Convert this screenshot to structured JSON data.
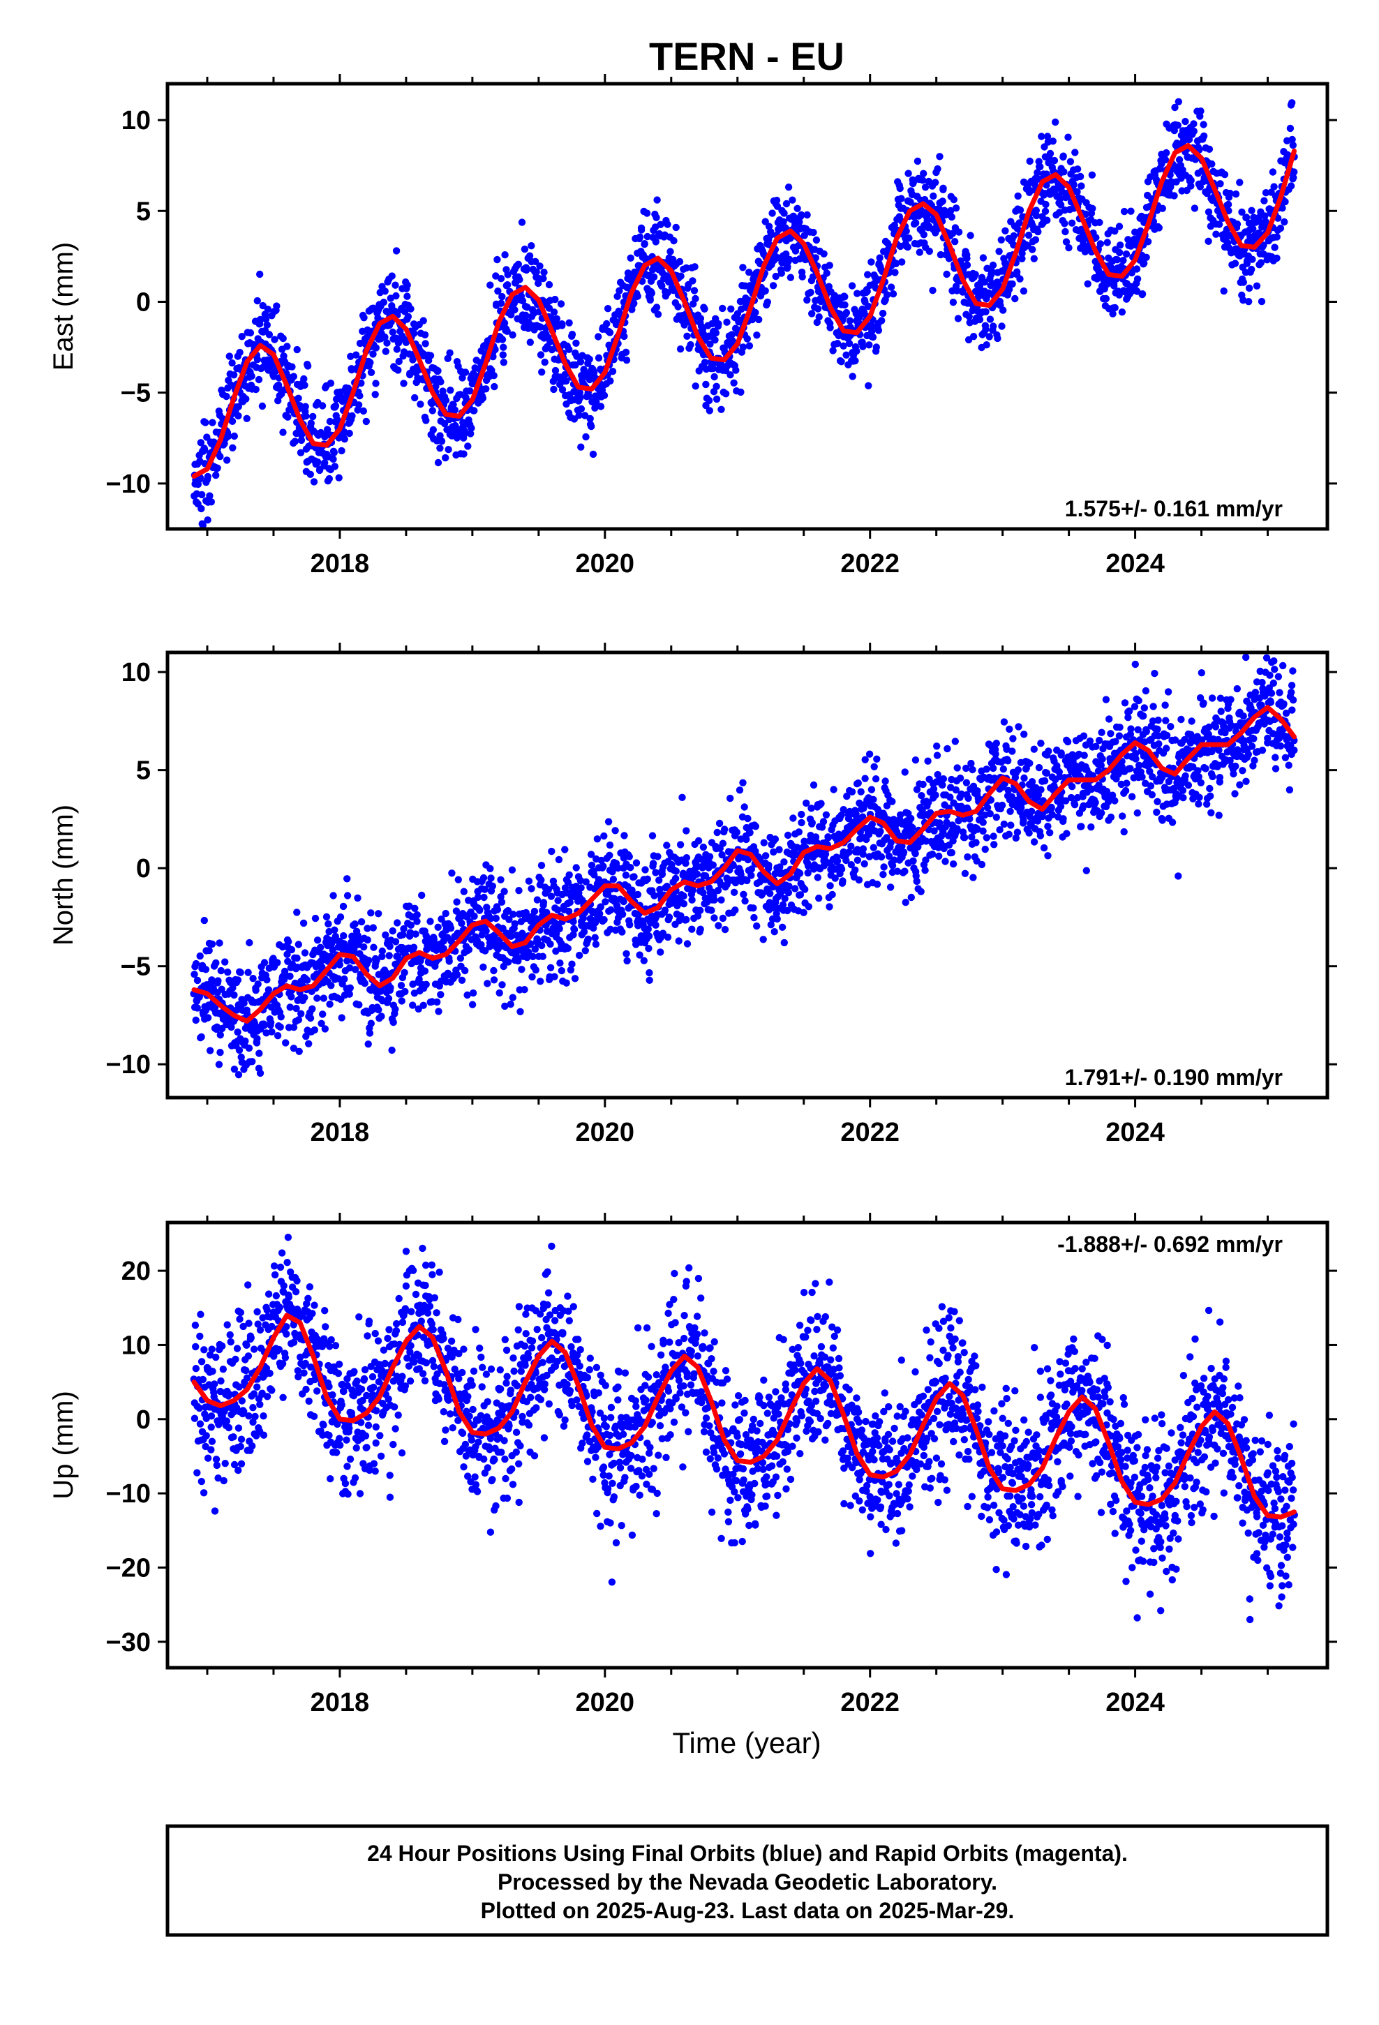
{
  "figure": {
    "title": "TERN - EU",
    "xlabel": "Time (year)"
  },
  "chart_data": [
    {
      "type": "scatter",
      "ylabel": "East (mm)",
      "xlim": [
        2016.7,
        2025.45
      ],
      "ylim": [
        -12.5,
        12
      ],
      "xticks": [
        2018,
        2020,
        2022,
        2024
      ],
      "yticks": [
        -10,
        -5,
        0,
        5,
        10
      ],
      "grid": false,
      "rate_label": "1.575+/- 0.161 mm/yr",
      "rate_position": "bottom-right",
      "series": [
        {
          "name": "Final Orbits (blue)",
          "kind": "points",
          "color": "#0000ff"
        },
        {
          "name": "Model fit",
          "kind": "line",
          "color": "#ff0000",
          "x": [
            2016.9,
            2017.0,
            2017.1,
            2017.2,
            2017.3,
            2017.4,
            2017.5,
            2017.6,
            2017.7,
            2017.8,
            2017.9,
            2018.0,
            2018.1,
            2018.2,
            2018.3,
            2018.4,
            2018.5,
            2018.6,
            2018.7,
            2018.8,
            2018.9,
            2019.0,
            2019.1,
            2019.2,
            2019.3,
            2019.4,
            2019.5,
            2019.6,
            2019.7,
            2019.8,
            2019.9,
            2020.0,
            2020.1,
            2020.2,
            2020.3,
            2020.4,
            2020.5,
            2020.6,
            2020.7,
            2020.8,
            2020.9,
            2021.0,
            2021.1,
            2021.2,
            2021.3,
            2021.4,
            2021.5,
            2021.6,
            2021.7,
            2021.8,
            2021.9,
            2022.0,
            2022.1,
            2022.2,
            2022.3,
            2022.4,
            2022.5,
            2022.6,
            2022.7,
            2022.8,
            2022.9,
            2023.0,
            2023.1,
            2023.2,
            2023.3,
            2023.4,
            2023.5,
            2023.6,
            2023.7,
            2023.8,
            2023.9,
            2024.0,
            2024.1,
            2024.2,
            2024.3,
            2024.4,
            2024.5,
            2024.6,
            2024.7,
            2024.8,
            2024.9,
            2025.0,
            2025.1,
            2025.2
          ],
          "y": [
            -9.6,
            -9.2,
            -7.6,
            -5.3,
            -3.3,
            -2.4,
            -2.9,
            -4.6,
            -6.5,
            -7.8,
            -7.9,
            -7.0,
            -5.0,
            -2.7,
            -1.2,
            -0.8,
            -1.5,
            -3.2,
            -5.0,
            -6.2,
            -6.3,
            -5.4,
            -3.4,
            -1.1,
            0.4,
            0.8,
            0.1,
            -1.6,
            -3.4,
            -4.7,
            -4.8,
            -3.9,
            -1.8,
            0.5,
            2.0,
            2.4,
            1.7,
            0.0,
            -1.9,
            -3.1,
            -3.2,
            -2.3,
            -0.3,
            2.0,
            3.5,
            3.9,
            3.2,
            1.6,
            -0.3,
            -1.6,
            -1.7,
            -0.8,
            1.2,
            3.5,
            5.0,
            5.4,
            4.8,
            3.1,
            1.2,
            -0.1,
            -0.2,
            0.7,
            2.7,
            5.0,
            6.6,
            7.0,
            6.3,
            4.6,
            2.8,
            1.5,
            1.4,
            2.3,
            4.3,
            6.6,
            8.2,
            8.6,
            7.9,
            6.2,
            4.4,
            3.1,
            3.0,
            3.8,
            5.8,
            8.3
          ]
        }
      ]
    },
    {
      "type": "scatter",
      "ylabel": "North (mm)",
      "xlim": [
        2016.7,
        2025.45
      ],
      "ylim": [
        -11.7,
        11
      ],
      "xticks": [
        2018,
        2020,
        2022,
        2024
      ],
      "yticks": [
        -10,
        -5,
        0,
        5,
        10
      ],
      "grid": false,
      "rate_label": "1.791+/- 0.190 mm/yr",
      "rate_position": "bottom-right",
      "series": [
        {
          "name": "Final Orbits (blue)",
          "kind": "points",
          "color": "#0000ff"
        },
        {
          "name": "Model fit",
          "kind": "line",
          "color": "#ff0000",
          "x": [
            2016.9,
            2017.0,
            2017.1,
            2017.2,
            2017.3,
            2017.4,
            2017.5,
            2017.6,
            2017.7,
            2017.8,
            2017.9,
            2018.0,
            2018.1,
            2018.2,
            2018.3,
            2018.4,
            2018.5,
            2018.6,
            2018.7,
            2018.8,
            2018.9,
            2019.0,
            2019.1,
            2019.2,
            2019.3,
            2019.4,
            2019.5,
            2019.6,
            2019.7,
            2019.8,
            2019.9,
            2020.0,
            2020.1,
            2020.2,
            2020.3,
            2020.4,
            2020.5,
            2020.6,
            2020.7,
            2020.8,
            2020.9,
            2021.0,
            2021.1,
            2021.2,
            2021.3,
            2021.4,
            2021.5,
            2021.6,
            2021.7,
            2021.8,
            2021.9,
            2022.0,
            2022.1,
            2022.2,
            2022.3,
            2022.4,
            2022.5,
            2022.6,
            2022.7,
            2022.8,
            2022.9,
            2023.0,
            2023.1,
            2023.2,
            2023.3,
            2023.4,
            2023.5,
            2023.6,
            2023.7,
            2023.8,
            2023.9,
            2024.0,
            2024.1,
            2024.2,
            2024.3,
            2024.4,
            2024.5,
            2024.6,
            2024.7,
            2024.8,
            2024.9,
            2025.0,
            2025.1,
            2025.2
          ],
          "y": [
            -6.2,
            -6.4,
            -7.0,
            -7.5,
            -7.8,
            -7.2,
            -6.4,
            -6.0,
            -6.2,
            -6.0,
            -5.2,
            -4.4,
            -4.5,
            -5.4,
            -6.0,
            -5.6,
            -4.6,
            -4.3,
            -4.6,
            -4.4,
            -3.7,
            -2.9,
            -2.7,
            -3.3,
            -4.0,
            -3.8,
            -2.9,
            -2.4,
            -2.6,
            -2.3,
            -1.6,
            -0.9,
            -0.9,
            -1.7,
            -2.3,
            -2.0,
            -1.1,
            -0.7,
            -0.9,
            -0.7,
            0.0,
            0.9,
            0.7,
            -0.2,
            -0.8,
            -0.3,
            0.8,
            1.1,
            1.0,
            1.3,
            2.0,
            2.6,
            2.3,
            1.4,
            1.3,
            2.0,
            2.8,
            2.9,
            2.7,
            2.9,
            3.8,
            4.6,
            4.3,
            3.4,
            3.0,
            3.8,
            4.5,
            4.5,
            4.5,
            5.0,
            5.8,
            6.4,
            6.0,
            5.1,
            4.8,
            5.6,
            6.3,
            6.3,
            6.3,
            6.9,
            7.7,
            8.2,
            7.6,
            6.7
          ]
        }
      ]
    },
    {
      "type": "scatter",
      "ylabel": "Up (mm)",
      "xlim": [
        2016.7,
        2025.45
      ],
      "ylim": [
        -33.5,
        26.5
      ],
      "xticks": [
        2018,
        2020,
        2022,
        2024
      ],
      "yticks": [
        -30,
        -20,
        -10,
        0,
        10,
        20
      ],
      "grid": false,
      "rate_label": "-1.888+/- 0.692 mm/yr",
      "rate_position": "top-right",
      "series": [
        {
          "name": "Final Orbits (blue)",
          "kind": "points",
          "color": "#0000ff"
        },
        {
          "name": "Model fit",
          "kind": "line",
          "color": "#ff0000",
          "x": [
            2016.9,
            2017.0,
            2017.1,
            2017.2,
            2017.3,
            2017.4,
            2017.5,
            2017.6,
            2017.7,
            2017.8,
            2017.9,
            2018.0,
            2018.1,
            2018.2,
            2018.3,
            2018.4,
            2018.5,
            2018.6,
            2018.7,
            2018.8,
            2018.9,
            2019.0,
            2019.1,
            2019.2,
            2019.3,
            2019.4,
            2019.5,
            2019.6,
            2019.7,
            2019.8,
            2019.9,
            2020.0,
            2020.1,
            2020.2,
            2020.3,
            2020.4,
            2020.5,
            2020.6,
            2020.7,
            2020.8,
            2020.9,
            2021.0,
            2021.1,
            2021.2,
            2021.3,
            2021.4,
            2021.5,
            2021.6,
            2021.7,
            2021.8,
            2021.9,
            2022.0,
            2022.1,
            2022.2,
            2022.3,
            2022.4,
            2022.5,
            2022.6,
            2022.7,
            2022.8,
            2022.9,
            2023.0,
            2023.1,
            2023.2,
            2023.3,
            2023.4,
            2023.5,
            2023.6,
            2023.7,
            2023.8,
            2023.9,
            2024.0,
            2024.1,
            2024.2,
            2024.3,
            2024.4,
            2024.5,
            2024.6,
            2024.7,
            2024.8,
            2024.9,
            2025.0,
            2025.1,
            2025.2
          ],
          "y": [
            5.0,
            2.5,
            1.8,
            2.5,
            4.0,
            7.0,
            11.0,
            14.0,
            13.0,
            8.5,
            3.0,
            0.0,
            -0.2,
            0.8,
            3.0,
            7.0,
            10.5,
            12.5,
            11.0,
            6.5,
            1.0,
            -1.8,
            -2.0,
            -1.2,
            1.0,
            5.0,
            8.5,
            10.5,
            9.0,
            4.5,
            -0.8,
            -3.8,
            -4.0,
            -3.2,
            -1.0,
            3.0,
            6.5,
            8.5,
            7.0,
            2.5,
            -2.8,
            -5.6,
            -5.8,
            -5.0,
            -2.8,
            1.2,
            4.8,
            6.8,
            5.2,
            0.6,
            -4.6,
            -7.5,
            -7.8,
            -7.0,
            -4.8,
            -0.8,
            2.8,
            4.8,
            3.2,
            -1.4,
            -6.6,
            -9.4,
            -9.6,
            -8.8,
            -6.6,
            -2.6,
            1.0,
            3.0,
            1.4,
            -3.2,
            -8.4,
            -11.2,
            -11.5,
            -10.8,
            -8.6,
            -4.6,
            -1.0,
            1.0,
            -0.6,
            -5.2,
            -10.4,
            -13.0,
            -13.2,
            -12.5
          ]
        }
      ]
    }
  ],
  "footer": {
    "line1": "24 Hour Positions Using Final Orbits (blue) and Rapid Orbits (magenta).",
    "line2": "Processed by the Nevada Geodetic Laboratory.",
    "line3": "Plotted on 2025-Aug-23. Last data on 2025-Mar-29."
  }
}
